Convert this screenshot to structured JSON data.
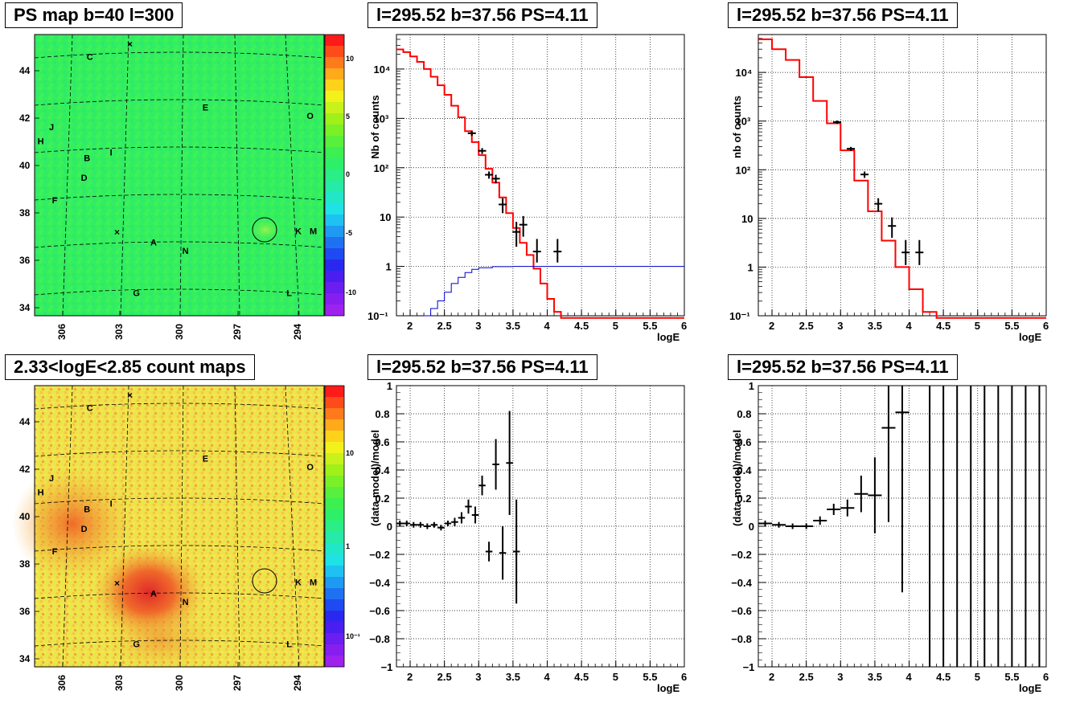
{
  "titles": {
    "map_top": "PS map b=40 l=300",
    "map_bottom": "2.33<logE<2.85 count maps",
    "spec_top_mid": "l=295.52 b=37.56 PS=4.11",
    "spec_top_right": "l=295.52 b=37.56 PS=4.11",
    "res_bot_mid": "l=295.52 b=37.56 PS=4.11",
    "res_bot_right": "l=295.52 b=37.56 PS=4.11"
  },
  "maps": {
    "lat_ticks": [
      "44",
      "42",
      "40",
      "38",
      "36",
      "34"
    ],
    "lon_ticks": [
      "306",
      "303",
      "300",
      "297",
      "294"
    ],
    "sources": [
      {
        "name": "C",
        "u": 0.18,
        "v": 0.09
      },
      {
        "name": "E",
        "u": 0.58,
        "v": 0.27
      },
      {
        "name": "O",
        "u": 0.94,
        "v": 0.3
      },
      {
        "name": "J",
        "u": 0.05,
        "v": 0.34
      },
      {
        "name": "H",
        "u": 0.01,
        "v": 0.39
      },
      {
        "name": "I",
        "u": 0.26,
        "v": 0.43
      },
      {
        "name": "B",
        "u": 0.17,
        "v": 0.45
      },
      {
        "name": "D",
        "u": 0.16,
        "v": 0.52
      },
      {
        "name": "F",
        "u": 0.06,
        "v": 0.6
      },
      {
        "name": "K",
        "u": 0.9,
        "v": 0.71
      },
      {
        "name": "M",
        "u": 0.95,
        "v": 0.71
      },
      {
        "name": "A",
        "u": 0.4,
        "v": 0.75
      },
      {
        "name": "N",
        "u": 0.51,
        "v": 0.78
      },
      {
        "name": "G",
        "u": 0.34,
        "v": 0.93
      },
      {
        "name": "L",
        "u": 0.87,
        "v": 0.93
      }
    ],
    "ps_top_ticks": [
      "10",
      "5",
      "0",
      "-5",
      "-10"
    ],
    "count_ticks": [
      "10",
      "1",
      "10⁻¹"
    ],
    "colors": {
      "ps_bg": "#33f05c",
      "count_bg": "#f2e44a",
      "count_hot": "#ef6a2e"
    }
  },
  "axes": {
    "logE_label": "logE",
    "nb_counts_label": "Nb of counts",
    "nb_counts_label_right": "nb of counts",
    "residual_label": "(data-model)/model",
    "x_ticks": [
      "2",
      "2.5",
      "3",
      "3.5",
      "4",
      "4.5",
      "5",
      "5.5",
      "6"
    ],
    "y_log_ticks": [
      "10⁻¹",
      "1",
      "10",
      "10²",
      "10³",
      "10⁴"
    ],
    "y_res_ticks": [
      "1",
      "0.8",
      "0.6",
      "0.4",
      "0.2",
      "0",
      "−0.2",
      "−0.4",
      "−0.6",
      "−0.8",
      "−1"
    ]
  },
  "chart_data": [
    {
      "type": "line",
      "title": "l=295.52 b=37.56 PS=4.11",
      "xlabel": "logE",
      "ylabel": "Nb of counts",
      "xlim": [
        1.8,
        6.0
      ],
      "ylim": [
        0.1,
        50000
      ],
      "yscale": "log",
      "grid": true,
      "series": [
        {
          "kind": "model_step",
          "color": "#ff0000",
          "bins": [
            1.8,
            1.9,
            2.0,
            2.1,
            2.2,
            2.3,
            2.4,
            2.5,
            2.6,
            2.7,
            2.8,
            2.9,
            3.0,
            3.1,
            3.2,
            3.3,
            3.4,
            3.5,
            3.6,
            3.7,
            3.8,
            3.9,
            4.0,
            4.1,
            4.2,
            6.0
          ],
          "values": [
            25000,
            22000,
            18000,
            14000,
            10000,
            7000,
            4700,
            3000,
            1800,
            1050,
            550,
            330,
            180,
            95,
            50,
            25,
            12,
            6,
            3,
            1.7,
            0.9,
            0.45,
            0.22,
            0.12,
            0.07
          ]
        },
        {
          "kind": "efficiency_curve",
          "color": "#0000cc",
          "x": [
            2.2,
            2.3,
            2.4,
            2.5,
            2.6,
            2.7,
            2.8,
            2.9,
            3.0,
            3.2,
            3.5,
            6.0
          ],
          "y": [
            0.1,
            0.14,
            0.2,
            0.3,
            0.45,
            0.6,
            0.75,
            0.87,
            0.94,
            0.99,
            1.0,
            1.0
          ]
        },
        {
          "kind": "data_points",
          "color": "#000000",
          "x": [
            2.9,
            3.05,
            3.15,
            3.25,
            3.35,
            3.55,
            3.65,
            3.85,
            4.15
          ],
          "y": [
            500,
            220,
            72,
            60,
            18,
            5,
            7,
            2,
            2
          ],
          "yerr_lo": [
            440,
            190,
            60,
            48,
            12,
            2.5,
            4,
            1.2,
            1.2
          ],
          "yerr_hi": [
            560,
            250,
            84,
            72,
            24,
            8,
            10.5,
            3.6,
            3.6
          ]
        }
      ]
    },
    {
      "type": "line",
      "title": "l=295.52 b=37.56 PS=4.11",
      "xlabel": "logE",
      "ylabel": "nb of counts",
      "xlim": [
        1.8,
        6.0
      ],
      "ylim": [
        0.1,
        60000
      ],
      "yscale": "log",
      "grid": true,
      "series": [
        {
          "kind": "model_step",
          "color": "#ff0000",
          "bins": [
            1.8,
            2.0,
            2.2,
            2.4,
            2.6,
            2.8,
            3.0,
            3.2,
            3.4,
            3.6,
            3.8,
            4.0,
            4.2,
            4.4,
            6.0
          ],
          "values": [
            48000,
            30000,
            18000,
            8000,
            2600,
            900,
            250,
            60,
            14,
            3.5,
            1.0,
            0.35,
            0.12,
            0.09
          ]
        },
        {
          "kind": "data_points",
          "color": "#000000",
          "x": [
            2.95,
            3.15,
            3.35,
            3.55,
            3.75,
            3.95,
            4.15
          ],
          "y": [
            950,
            270,
            80,
            20,
            7,
            2,
            2
          ],
          "yerr_lo": [
            880,
            245,
            68,
            14,
            4,
            1.1,
            1.1
          ],
          "yerr_hi": [
            1020,
            295,
            92,
            26,
            10.5,
            3.6,
            3.6
          ]
        }
      ]
    },
    {
      "type": "scatter",
      "title": "l=295.52 b=37.56 PS=4.11",
      "xlabel": "logE",
      "ylabel": "(data-model)/model",
      "xlim": [
        1.8,
        6.0
      ],
      "ylim": [
        -1,
        1
      ],
      "grid": true,
      "series": [
        {
          "kind": "residuals",
          "color": "#000000",
          "x": [
            1.85,
            1.95,
            2.05,
            2.15,
            2.25,
            2.35,
            2.45,
            2.55,
            2.65,
            2.75,
            2.85,
            2.95,
            3.05,
            3.15,
            3.25,
            3.35,
            3.45,
            3.55
          ],
          "y": [
            0.02,
            0.02,
            0.01,
            0.01,
            0.0,
            0.01,
            -0.01,
            0.02,
            0.03,
            0.06,
            0.14,
            0.08,
            0.29,
            -0.18,
            0.44,
            -0.19,
            0.45,
            -0.18
          ],
          "yerr": [
            0.02,
            0.02,
            0.02,
            0.02,
            0.02,
            0.02,
            0.02,
            0.02,
            0.03,
            0.04,
            0.05,
            0.06,
            0.07,
            0.07,
            0.18,
            0.19,
            0.37,
            0.37
          ],
          "xerr": 0.05
        }
      ]
    },
    {
      "type": "scatter",
      "title": "l=295.52 b=37.56 PS=4.11",
      "xlabel": "logE",
      "ylabel": "(data-model)/model",
      "xlim": [
        1.8,
        6.0
      ],
      "ylim": [
        -1,
        1
      ],
      "grid": true,
      "series": [
        {
          "kind": "residuals",
          "color": "#000000",
          "x": [
            1.9,
            2.1,
            2.3,
            2.5,
            2.7,
            2.9,
            3.1,
            3.3,
            3.5,
            3.7,
            3.9
          ],
          "y": [
            0.02,
            0.01,
            0.0,
            0.0,
            0.04,
            0.12,
            0.13,
            0.23,
            0.22,
            0.7,
            0.81
          ],
          "yerr": [
            0.02,
            0.02,
            0.02,
            0.02,
            0.03,
            0.04,
            0.06,
            0.13,
            0.27,
            0.67,
            1.28
          ],
          "xerr": 0.1
        },
        {
          "kind": "full_range_bars",
          "color": "#000000",
          "x": [
            4.3,
            4.5,
            4.7,
            4.9,
            5.1,
            5.3,
            5.5,
            5.7,
            5.9
          ]
        }
      ]
    }
  ]
}
